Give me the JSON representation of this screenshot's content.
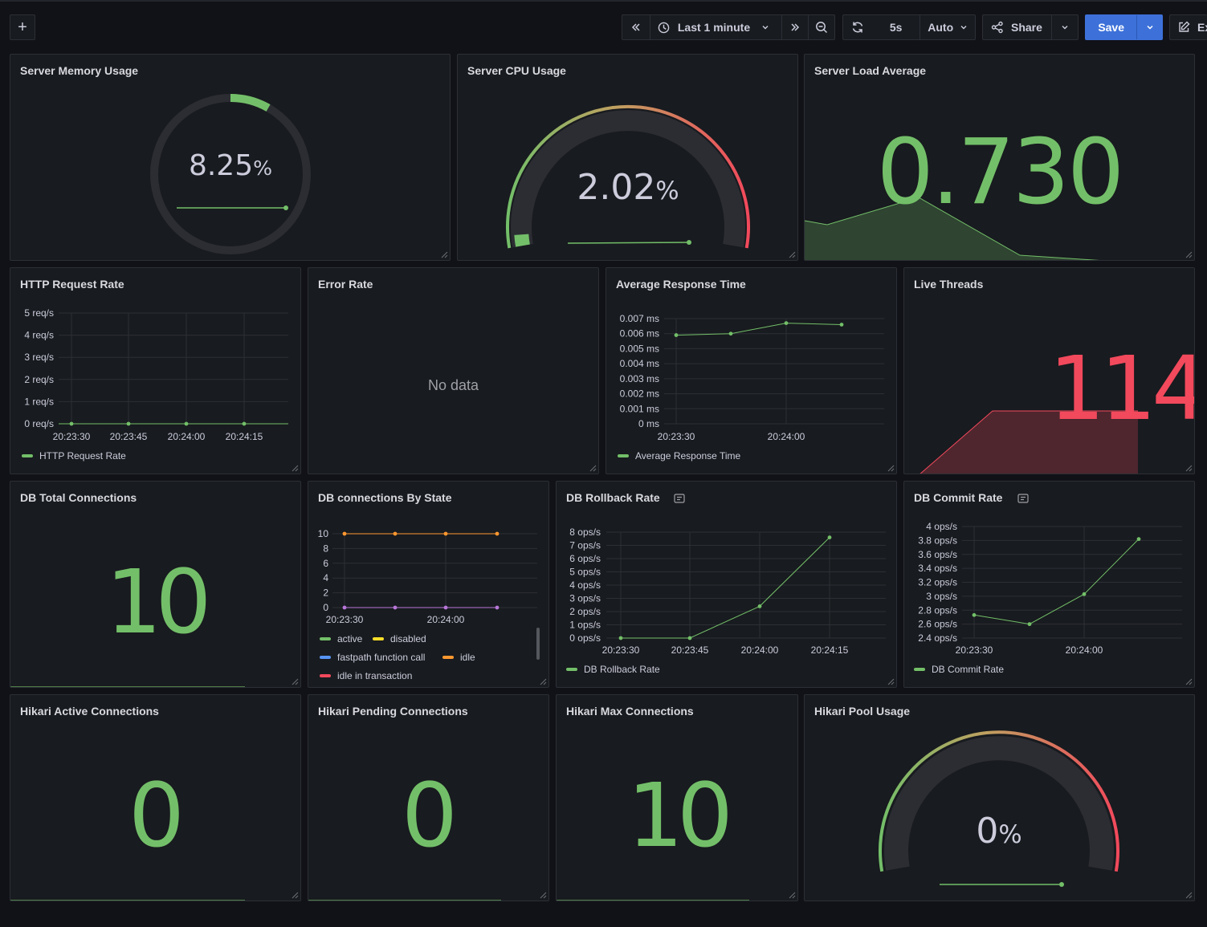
{
  "toolbar": {
    "add_label": "+",
    "time_range": "Last 1 minute",
    "refresh_interval": "5s",
    "auto_label": "Auto",
    "share_label": "Share",
    "save_label": "Save",
    "edit_label": "Ex"
  },
  "colors": {
    "green": "#73bf69",
    "red": "#f2495c",
    "orange": "#ff9830",
    "yellow": "#fade2a",
    "blue": "#5794f2",
    "purple": "#b877d9",
    "save": "#3d71d9"
  },
  "panels": {
    "memory": {
      "title": "Server Memory Usage",
      "value": "8.25",
      "unit": "%",
      "fraction": 0.0825
    },
    "cpu": {
      "title": "Server CPU Usage",
      "value": "2.02",
      "unit": "%",
      "fraction": 0.0202
    },
    "load": {
      "title": "Server Load Average",
      "value": "0.730"
    },
    "http": {
      "title": "HTTP Request Rate",
      "legend": "HTTP Request Rate"
    },
    "error": {
      "title": "Error Rate",
      "message": "No data"
    },
    "response": {
      "title": "Average Response Time",
      "legend": "Average Response Time"
    },
    "threads": {
      "title": "Live Threads",
      "value": "114"
    },
    "db_total": {
      "title": "DB Total Connections",
      "value": "10"
    },
    "db_state": {
      "title": "DB connections By State",
      "legend": [
        "active",
        "disabled",
        "fastpath function call",
        "idle",
        "idle in transaction"
      ]
    },
    "rollback": {
      "title": "DB Rollback Rate",
      "legend": "DB Rollback Rate"
    },
    "commit": {
      "title": "DB Commit Rate",
      "legend": "DB Commit Rate"
    },
    "hikari_active": {
      "title": "Hikari Active Connections",
      "value": "0"
    },
    "hikari_pending": {
      "title": "Hikari Pending Connections",
      "value": "0"
    },
    "hikari_max": {
      "title": "Hikari Max Connections",
      "value": "10"
    },
    "hikari_pool": {
      "title": "Hikari Pool Usage",
      "value": "0",
      "unit": "%",
      "fraction": 0
    }
  },
  "chart_data": [
    {
      "id": "http",
      "type": "line",
      "x": [
        "20:23:30",
        "20:23:45",
        "20:24:00",
        "20:24:15"
      ],
      "y_ticks": [
        "0 req/s",
        "1 req/s",
        "2 req/s",
        "3 req/s",
        "4 req/s",
        "5 req/s"
      ],
      "ylim": [
        0,
        5
      ],
      "series": [
        {
          "name": "HTTP Request Rate",
          "values": [
            0,
            0,
            0,
            0
          ]
        }
      ]
    },
    {
      "id": "response",
      "type": "line",
      "x": [
        "20:23:30",
        "20:23:45",
        "20:24:00",
        "20:24:15"
      ],
      "x_ticks": [
        "20:23:30",
        "20:24:00"
      ],
      "y_ticks": [
        "0 ms",
        "0.001 ms",
        "0.002 ms",
        "0.003 ms",
        "0.004 ms",
        "0.005 ms",
        "0.006 ms",
        "0.007 ms"
      ],
      "ylim": [
        0,
        0.007
      ],
      "series": [
        {
          "name": "Average Response Time",
          "values": [
            0.0059,
            0.006,
            0.0067,
            0.0066
          ]
        }
      ]
    },
    {
      "id": "db_state",
      "type": "line",
      "x": [
        "20:23:30",
        "20:23:45",
        "20:24:00",
        "20:24:15"
      ],
      "x_ticks": [
        "20:23:30",
        "20:24:00"
      ],
      "y_ticks": [
        "0",
        "2",
        "4",
        "6",
        "8",
        "10"
      ],
      "ylim": [
        0,
        10
      ],
      "series": [
        {
          "name": "idle",
          "values": [
            10,
            10,
            10,
            10
          ]
        },
        {
          "name": "active",
          "values": [
            0,
            0,
            0,
            0
          ]
        }
      ]
    },
    {
      "id": "rollback",
      "type": "line",
      "x": [
        "20:23:30",
        "20:23:45",
        "20:24:00",
        "20:24:15"
      ],
      "y_ticks": [
        "0 ops/s",
        "1 ops/s",
        "2 ops/s",
        "3 ops/s",
        "4 ops/s",
        "5 ops/s",
        "6 ops/s",
        "7 ops/s",
        "8 ops/s"
      ],
      "ylim": [
        0,
        8
      ],
      "series": [
        {
          "name": "DB Rollback Rate",
          "values": [
            0,
            0,
            2.4,
            7.6
          ]
        }
      ]
    },
    {
      "id": "commit",
      "type": "line",
      "x": [
        "20:23:30",
        "20:23:45",
        "20:24:00",
        "20:24:15"
      ],
      "x_ticks": [
        "20:23:30",
        "20:24:00"
      ],
      "y_ticks": [
        "2.4 ops/s",
        "2.6 ops/s",
        "2.8 ops/s",
        "3 ops/s",
        "3.2 ops/s",
        "3.4 ops/s",
        "3.6 ops/s",
        "3.8 ops/s",
        "4 ops/s"
      ],
      "ylim": [
        2.4,
        4
      ],
      "series": [
        {
          "name": "DB Commit Rate",
          "values": [
            2.73,
            2.6,
            3.03,
            3.82
          ]
        }
      ]
    }
  ]
}
